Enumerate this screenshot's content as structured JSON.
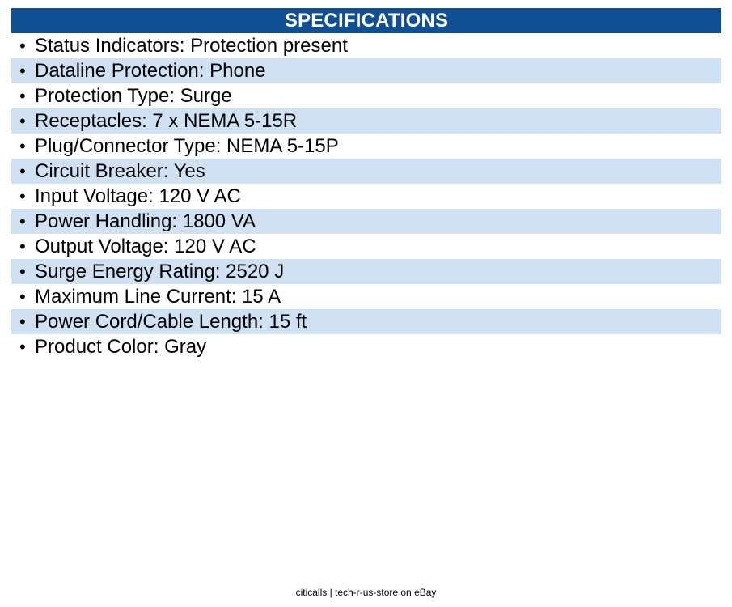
{
  "header": {
    "title": "SPECIFICATIONS"
  },
  "specs": [
    "Status Indicators: Protection present",
    "Dataline Protection: Phone",
    "Protection Type: Surge",
    "Receptacles: 7 x NEMA 5-15R",
    "Plug/Connector Type: NEMA 5-15P",
    "Circuit Breaker: Yes",
    "Input Voltage: 120 V AC",
    "Power Handling: 1800 VA",
    "Output Voltage: 120 V AC",
    "Surge Energy Rating: 2520 J",
    "Maximum Line Current: 15 A",
    "Power Cord/Cable Length: 15 ft",
    "Product Color: Gray"
  ],
  "bullet": "•",
  "footer": {
    "text": "citicalls | tech-r-us-store on eBay"
  },
  "colors": {
    "header_bg": "#0f4f92",
    "row_shade": "#cfe1f3"
  }
}
